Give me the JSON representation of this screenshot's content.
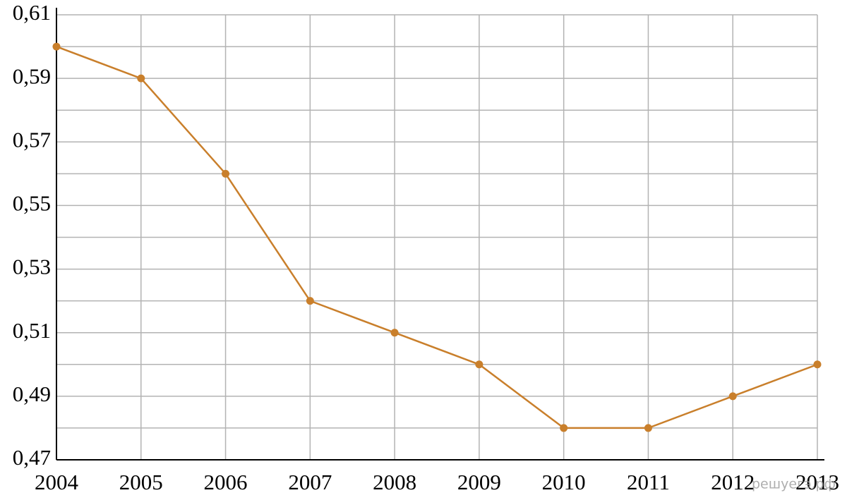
{
  "chart_data": {
    "type": "line",
    "x": [
      2004,
      2005,
      2006,
      2007,
      2008,
      2009,
      2010,
      2011,
      2012,
      2013
    ],
    "series": [
      {
        "color": "#c97f2b",
        "values": [
          0.6,
          0.59,
          0.56,
          0.52,
          0.51,
          0.5,
          0.48,
          0.48,
          0.49,
          0.5
        ]
      }
    ],
    "xlim": [
      2004,
      2013
    ],
    "xticks": [
      2004,
      2005,
      2006,
      2007,
      2008,
      2009,
      2010,
      2011,
      2012,
      2013
    ],
    "ylim": [
      0.47,
      0.61
    ],
    "yticks": [
      {
        "value": 0.47,
        "label": "0,47"
      },
      {
        "value": 0.49,
        "label": "0,49"
      },
      {
        "value": 0.51,
        "label": "0,51"
      },
      {
        "value": 0.53,
        "label": "0,53"
      },
      {
        "value": 0.55,
        "label": "0,55"
      },
      {
        "value": 0.57,
        "label": "0,57"
      },
      {
        "value": 0.59,
        "label": "0,59"
      },
      {
        "value": 0.61,
        "label": "0,61"
      }
    ],
    "minor_yticks": [
      0.48,
      0.5,
      0.52,
      0.54,
      0.56,
      0.58,
      0.6
    ],
    "grid": true,
    "watermark": "решуегэ.рф"
  }
}
